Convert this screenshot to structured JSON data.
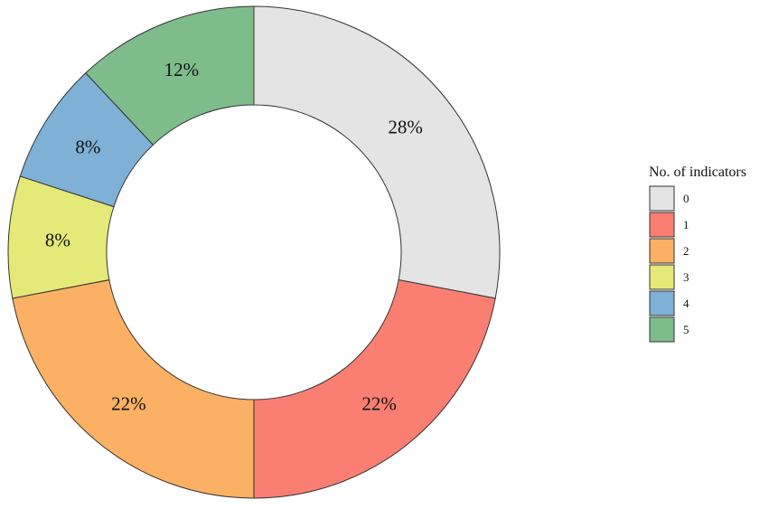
{
  "chart_data": {
    "type": "pie",
    "donut": true,
    "title": "",
    "legend_title": "No. of indicators",
    "legend_position": "right",
    "categories": [
      "0",
      "1",
      "2",
      "3",
      "4",
      "5"
    ],
    "values": [
      28,
      22,
      22,
      8,
      8,
      12
    ],
    "labels": [
      "28%",
      "22%",
      "22%",
      "8%",
      "8%",
      "12%"
    ],
    "colors": [
      "#e4e4e4",
      "#fa7f72",
      "#fbb063",
      "#e4e978",
      "#7eb1d5",
      "#7ebc8c"
    ],
    "start": "top",
    "direction": "clockwise"
  }
}
